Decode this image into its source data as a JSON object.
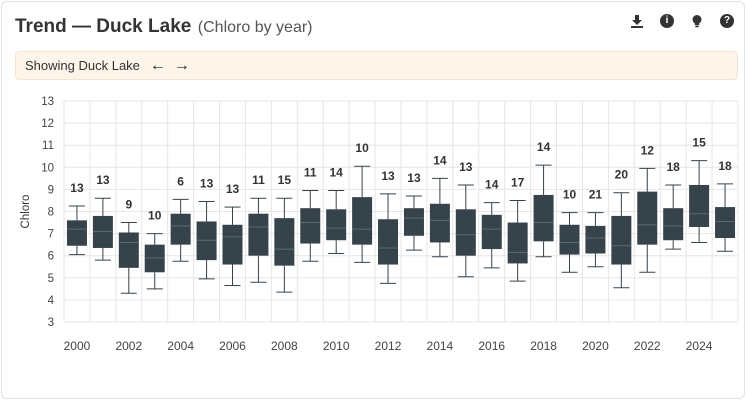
{
  "header": {
    "title": "Trend — Duck Lake",
    "subtitle": "(Chloro by year)",
    "icons": [
      "download-icon",
      "info-icon",
      "lightbulb-icon",
      "help-icon"
    ]
  },
  "banner": {
    "text": "Showing Duck Lake",
    "prev_arrow": "←",
    "next_arrow": "→"
  },
  "chart_data": {
    "type": "boxplot",
    "ylabel": "Chloro",
    "ylim": [
      3,
      13
    ],
    "yticks": [
      3,
      4,
      5,
      6,
      7,
      8,
      9,
      10,
      11,
      12,
      13
    ],
    "xtick_labels": [
      "2000",
      "2002",
      "2004",
      "2006",
      "2008",
      "2010",
      "2012",
      "2014",
      "2016",
      "2018",
      "2020",
      "2022",
      "2024"
    ],
    "grid": true,
    "box_color": "#36434b",
    "boxes": [
      {
        "year": "2000",
        "count": 13,
        "min": 6.05,
        "q1": 6.45,
        "median": 7.2,
        "q3": 7.6,
        "max": 8.25
      },
      {
        "year": "2001",
        "count": 13,
        "min": 5.8,
        "q1": 6.35,
        "median": 7.1,
        "q3": 7.8,
        "max": 8.6
      },
      {
        "year": "2002",
        "count": 9,
        "min": 4.3,
        "q1": 5.45,
        "median": 6.6,
        "q3": 7.05,
        "max": 7.5
      },
      {
        "year": "2003",
        "count": 10,
        "min": 4.5,
        "q1": 5.25,
        "median": 5.9,
        "q3": 6.5,
        "max": 7.0
      },
      {
        "year": "2004",
        "count": 6,
        "min": 5.75,
        "q1": 6.5,
        "median": 7.35,
        "q3": 7.9,
        "max": 8.55
      },
      {
        "year": "2005",
        "count": 13,
        "min": 4.95,
        "q1": 5.8,
        "median": 6.7,
        "q3": 7.55,
        "max": 8.45
      },
      {
        "year": "2006",
        "count": 13,
        "min": 4.65,
        "q1": 5.6,
        "median": 6.85,
        "q3": 7.4,
        "max": 8.2
      },
      {
        "year": "2007",
        "count": 11,
        "min": 4.8,
        "q1": 6.0,
        "median": 7.3,
        "q3": 7.9,
        "max": 8.6
      },
      {
        "year": "2008",
        "count": 15,
        "min": 4.35,
        "q1": 5.55,
        "median": 6.3,
        "q3": 7.7,
        "max": 8.6
      },
      {
        "year": "2009",
        "count": 11,
        "min": 5.75,
        "q1": 6.55,
        "median": 7.5,
        "q3": 8.15,
        "max": 8.95
      },
      {
        "year": "2010",
        "count": 14,
        "min": 6.1,
        "q1": 6.7,
        "median": 7.25,
        "q3": 8.1,
        "max": 8.95
      },
      {
        "year": "2011",
        "count": 10,
        "min": 5.7,
        "q1": 6.5,
        "median": 7.2,
        "q3": 8.65,
        "max": 10.05
      },
      {
        "year": "2012",
        "count": 13,
        "min": 4.75,
        "q1": 5.6,
        "median": 6.35,
        "q3": 7.65,
        "max": 8.8
      },
      {
        "year": "2013",
        "count": 13,
        "min": 6.25,
        "q1": 6.9,
        "median": 7.7,
        "q3": 8.15,
        "max": 8.7
      },
      {
        "year": "2014",
        "count": 14,
        "min": 5.95,
        "q1": 6.6,
        "median": 7.6,
        "q3": 8.35,
        "max": 9.5
      },
      {
        "year": "2015",
        "count": 13,
        "min": 5.05,
        "q1": 6.0,
        "median": 6.95,
        "q3": 8.1,
        "max": 9.2
      },
      {
        "year": "2016",
        "count": 14,
        "min": 5.45,
        "q1": 6.3,
        "median": 7.2,
        "q3": 7.85,
        "max": 8.4
      },
      {
        "year": "2017",
        "count": 17,
        "min": 4.85,
        "q1": 5.65,
        "median": 6.15,
        "q3": 7.5,
        "max": 8.5
      },
      {
        "year": "2018",
        "count": 14,
        "min": 5.95,
        "q1": 6.65,
        "median": 7.5,
        "q3": 8.75,
        "max": 10.1
      },
      {
        "year": "2019",
        "count": 10,
        "min": 5.25,
        "q1": 6.05,
        "median": 6.6,
        "q3": 7.4,
        "max": 7.95
      },
      {
        "year": "2020",
        "count": 21,
        "min": 5.5,
        "q1": 6.1,
        "median": 6.8,
        "q3": 7.35,
        "max": 7.95
      },
      {
        "year": "2021",
        "count": 20,
        "min": 4.55,
        "q1": 5.6,
        "median": 6.45,
        "q3": 7.8,
        "max": 8.85
      },
      {
        "year": "2022",
        "count": 12,
        "min": 5.25,
        "q1": 6.5,
        "median": 7.4,
        "q3": 8.9,
        "max": 9.95
      },
      {
        "year": "2023",
        "count": 18,
        "min": 6.3,
        "q1": 6.7,
        "median": 7.35,
        "q3": 8.15,
        "max": 9.2
      },
      {
        "year": "2024",
        "count": 15,
        "min": 6.6,
        "q1": 7.3,
        "median": 7.9,
        "q3": 9.2,
        "max": 10.3
      },
      {
        "year": "2025",
        "count": 18,
        "min": 6.2,
        "q1": 6.8,
        "median": 7.55,
        "q3": 8.2,
        "max": 9.25
      }
    ]
  }
}
